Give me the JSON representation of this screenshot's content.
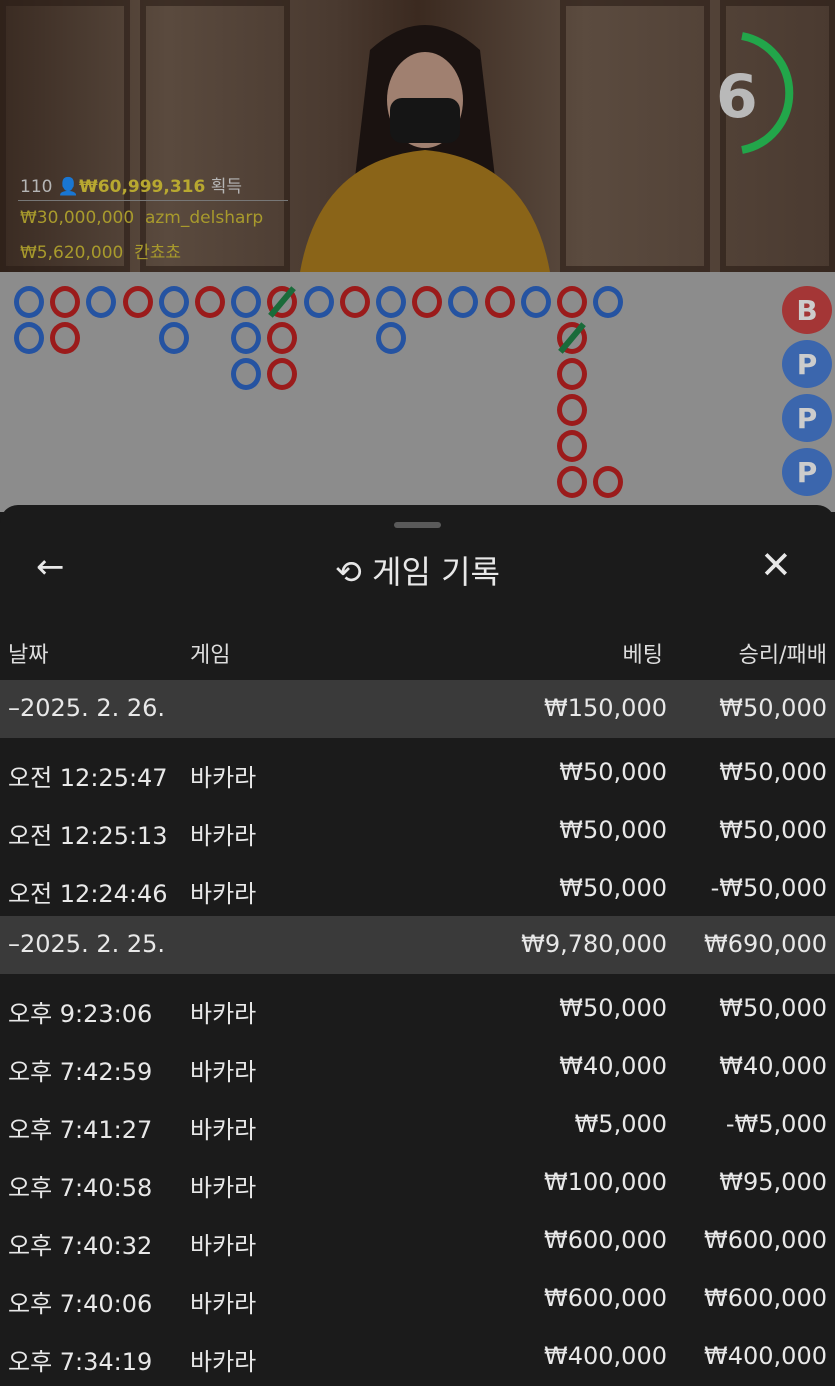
{
  "video": {
    "timer": "6",
    "player_count": "110",
    "total_win": "₩60,999,316",
    "total_win_label": "획득",
    "winners": [
      {
        "amount": "₩30,000,000",
        "name": "azm_delsharp"
      },
      {
        "amount": "₩5,620,000",
        "name": "칸쵸쵸"
      }
    ]
  },
  "colors": {
    "banker": "#9b1b1b",
    "player": "#2553a1",
    "tie": "#1a6b3a",
    "timer": "#22a64a"
  },
  "bead_road": [
    {
      "c": 0,
      "r": 0,
      "s": "B"
    },
    {
      "c": 1,
      "r": 0,
      "s": "R"
    },
    {
      "c": 2,
      "r": 0,
      "s": "B"
    },
    {
      "c": 3,
      "r": 0,
      "s": "R"
    },
    {
      "c": 4,
      "r": 0,
      "s": "B"
    },
    {
      "c": 5,
      "r": 0,
      "s": "R"
    },
    {
      "c": 6,
      "r": 0,
      "s": "B"
    },
    {
      "c": 7,
      "r": 0,
      "s": "R",
      "tie": true
    },
    {
      "c": 8,
      "r": 0,
      "s": "B"
    },
    {
      "c": 9,
      "r": 0,
      "s": "R"
    },
    {
      "c": 10,
      "r": 0,
      "s": "B"
    },
    {
      "c": 11,
      "r": 0,
      "s": "R"
    },
    {
      "c": 12,
      "r": 0,
      "s": "B"
    },
    {
      "c": 13,
      "r": 0,
      "s": "R"
    },
    {
      "c": 14,
      "r": 0,
      "s": "B"
    },
    {
      "c": 15,
      "r": 0,
      "s": "R"
    },
    {
      "c": 16,
      "r": 0,
      "s": "B"
    },
    {
      "c": 0,
      "r": 1,
      "s": "B"
    },
    {
      "c": 1,
      "r": 1,
      "s": "R"
    },
    {
      "c": 4,
      "r": 1,
      "s": "B"
    },
    {
      "c": 6,
      "r": 1,
      "s": "B"
    },
    {
      "c": 7,
      "r": 1,
      "s": "R"
    },
    {
      "c": 10,
      "r": 1,
      "s": "B"
    },
    {
      "c": 15,
      "r": 1,
      "s": "R",
      "tie": true
    },
    {
      "c": 6,
      "r": 2,
      "s": "B"
    },
    {
      "c": 7,
      "r": 2,
      "s": "R"
    },
    {
      "c": 15,
      "r": 2,
      "s": "R"
    },
    {
      "c": 15,
      "r": 3,
      "s": "R"
    },
    {
      "c": 15,
      "r": 4,
      "s": "R"
    },
    {
      "c": 15,
      "r": 5,
      "s": "R"
    },
    {
      "c": 16,
      "r": 5,
      "s": "R"
    }
  ],
  "side_predict": [
    "B",
    "P",
    "P",
    "P"
  ],
  "panel": {
    "back_icon": "arrow-left",
    "history_icon": "history",
    "title": "게임 기록",
    "close_icon": "x",
    "columns": {
      "date": "날짜",
      "game": "게임",
      "bet": "베팅",
      "result": "승리/패배"
    },
    "groups": [
      {
        "date": "–2025. 2. 26.",
        "bet": "₩150,000",
        "result": "₩50,000",
        "rows": [
          {
            "time": "오전 12:25:47",
            "game": "바카라",
            "bet": "₩50,000",
            "result": "₩50,000"
          },
          {
            "time": "오전 12:25:13",
            "game": "바카라",
            "bet": "₩50,000",
            "result": "₩50,000"
          },
          {
            "time": "오전 12:24:46",
            "game": "바카라",
            "bet": "₩50,000",
            "result": "-₩50,000"
          }
        ]
      },
      {
        "date": "–2025. 2. 25.",
        "bet": "₩9,780,000",
        "result": "₩690,000",
        "rows": [
          {
            "time": "오후 9:23:06",
            "game": "바카라",
            "bet": "₩50,000",
            "result": "₩50,000"
          },
          {
            "time": "오후 7:42:59",
            "game": "바카라",
            "bet": "₩40,000",
            "result": "₩40,000"
          },
          {
            "time": "오후 7:41:27",
            "game": "바카라",
            "bet": "₩5,000",
            "result": "-₩5,000"
          },
          {
            "time": "오후 7:40:58",
            "game": "바카라",
            "bet": "₩100,000",
            "result": "₩95,000"
          },
          {
            "time": "오후 7:40:32",
            "game": "바카라",
            "bet": "₩600,000",
            "result": "₩600,000"
          },
          {
            "time": "오후 7:40:06",
            "game": "바카라",
            "bet": "₩600,000",
            "result": "₩600,000"
          },
          {
            "time": "오후 7:34:19",
            "game": "바카라",
            "bet": "₩400,000",
            "result": "₩400,000"
          }
        ]
      }
    ]
  }
}
